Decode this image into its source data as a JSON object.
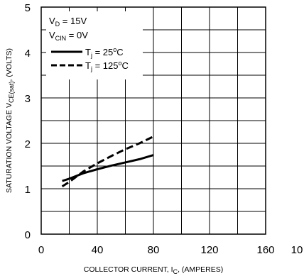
{
  "chart_data": {
    "type": "line",
    "title": "",
    "xlabel": {
      "main": "COLLECTOR CURRENT, I",
      "sub": "C",
      "suffix": ", (AMPERES)"
    },
    "ylabel": {
      "main": "SATURATION VOLTAGE V",
      "sub": "CE(sat)",
      "suffix": ", (VOLTS)"
    },
    "xlim": [
      0,
      160
    ],
    "ylim": [
      0,
      5
    ],
    "x_ticks": [
      "0",
      "40",
      "80",
      "120",
      "160"
    ],
    "x_extra_tick": "10",
    "y_ticks": [
      "0",
      "1",
      "2",
      "3",
      "4",
      "5"
    ],
    "grid": true,
    "legend": {
      "placement": "top-left",
      "conditions": [
        {
          "main": "V",
          "sub": "D",
          "rest": " = 15V"
        },
        {
          "main": "V",
          "sub": "CIN",
          "rest": " = 0V"
        }
      ]
    },
    "series": [
      {
        "name": {
          "main": "T",
          "sub": "j",
          "value": " = 25",
          "sup": "o",
          "unit": "C"
        },
        "style": "solid",
        "points": [
          [
            15,
            1.17
          ],
          [
            20,
            1.22
          ],
          [
            30,
            1.34
          ],
          [
            40,
            1.43
          ],
          [
            50,
            1.51
          ],
          [
            60,
            1.58
          ],
          [
            70,
            1.65
          ],
          [
            80,
            1.74
          ]
        ]
      },
      {
        "name": {
          "main": "T",
          "sub": "j",
          "value": " = 125",
          "sup": "o",
          "unit": "C"
        },
        "style": "dashed",
        "points": [
          [
            15,
            1.05
          ],
          [
            20,
            1.15
          ],
          [
            30,
            1.38
          ],
          [
            40,
            1.56
          ],
          [
            50,
            1.72
          ],
          [
            60,
            1.87
          ],
          [
            70,
            2.0
          ],
          [
            80,
            2.15
          ]
        ]
      }
    ]
  },
  "colors": {
    "line": "#000000",
    "grid": "#000000",
    "background": "#ffffff"
  }
}
